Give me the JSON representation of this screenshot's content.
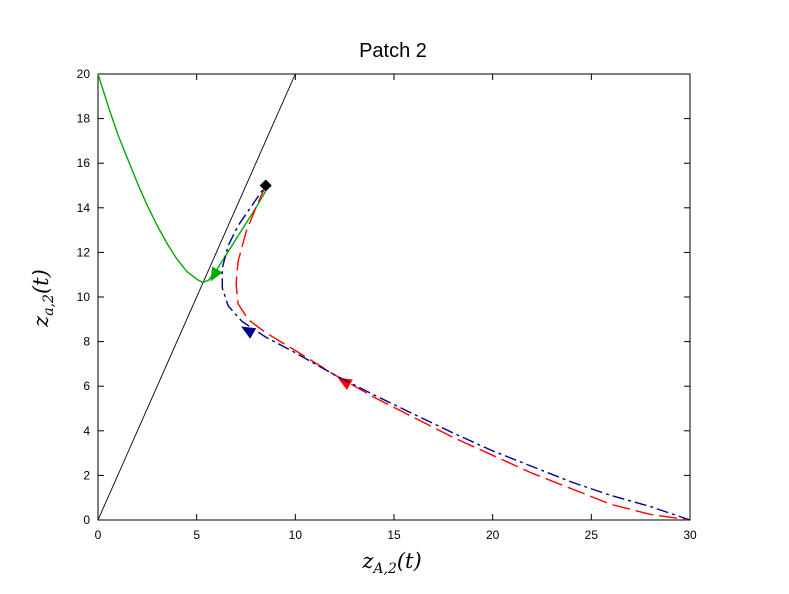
{
  "chart_data": {
    "type": "line",
    "title": "Patch 2",
    "xlabel": {
      "base": "z",
      "sub": "A,2",
      "suffix": "(t)"
    },
    "ylabel": {
      "base": "z",
      "sub": "a,2",
      "suffix": "(t)"
    },
    "xlim": [
      0,
      30
    ],
    "ylim": [
      0,
      20
    ],
    "x_ticks": [
      0,
      5,
      10,
      15,
      20,
      25,
      30
    ],
    "y_ticks": [
      0,
      2,
      4,
      6,
      8,
      10,
      12,
      14,
      16,
      18,
      20
    ],
    "grid": false,
    "series": [
      {
        "style": "solid-black",
        "color": "#000000",
        "points": [
          [
            0,
            0
          ],
          [
            10,
            20
          ]
        ]
      },
      {
        "style": "solid-green",
        "color": "#00aa00",
        "points": [
          [
            0,
            20
          ],
          [
            0.5,
            18.6
          ],
          [
            1.0,
            17.3
          ],
          [
            1.5,
            16.2
          ],
          [
            2.0,
            15.1
          ],
          [
            2.5,
            14.1
          ],
          [
            3.0,
            13.2
          ],
          [
            3.5,
            12.4
          ],
          [
            4.0,
            11.7
          ],
          [
            4.5,
            11.15
          ],
          [
            5.0,
            10.8
          ],
          [
            5.3,
            10.65
          ],
          [
            5.6,
            10.75
          ],
          [
            6.0,
            11.2
          ],
          [
            6.5,
            11.9
          ],
          [
            7.0,
            12.6
          ],
          [
            7.5,
            13.3
          ],
          [
            8.0,
            14.0
          ],
          [
            8.5,
            14.75
          ]
        ],
        "arrow_at": [
          5.9,
          11.0
        ],
        "arrow_dir": "down-left"
      },
      {
        "style": "dashed-red",
        "color": "#ff0000",
        "points": [
          [
            8.5,
            15.0
          ],
          [
            8.0,
            14.0
          ],
          [
            7.5,
            12.9
          ],
          [
            7.1,
            11.6
          ],
          [
            7.0,
            10.6
          ],
          [
            7.1,
            9.7
          ],
          [
            7.6,
            9.0
          ],
          [
            8.5,
            8.4
          ],
          [
            10.0,
            7.6
          ],
          [
            12.0,
            6.5
          ],
          [
            14.0,
            5.5
          ],
          [
            16.0,
            4.6
          ],
          [
            18.0,
            3.7
          ],
          [
            20.0,
            2.9
          ],
          [
            22.0,
            2.1
          ],
          [
            24.0,
            1.4
          ],
          [
            26.0,
            0.7
          ],
          [
            28.0,
            0.25
          ],
          [
            30.0,
            0.0
          ]
        ],
        "arrow_at": [
          12.5,
          6.2
        ],
        "arrow_dir": "up-left"
      },
      {
        "style": "dashdot-blue",
        "color": "#00008b",
        "points": [
          [
            30.0,
            0.0
          ],
          [
            28.0,
            0.6
          ],
          [
            26.0,
            1.1
          ],
          [
            24.0,
            1.7
          ],
          [
            22.0,
            2.4
          ],
          [
            20.0,
            3.1
          ],
          [
            18.0,
            3.9
          ],
          [
            16.0,
            4.75
          ],
          [
            14.0,
            5.6
          ],
          [
            12.0,
            6.5
          ],
          [
            10.0,
            7.5
          ],
          [
            8.5,
            8.2
          ],
          [
            7.3,
            8.9
          ],
          [
            6.6,
            9.6
          ],
          [
            6.3,
            10.4
          ],
          [
            6.3,
            11.3
          ],
          [
            6.6,
            12.3
          ],
          [
            7.1,
            13.2
          ],
          [
            7.8,
            14.1
          ],
          [
            8.5,
            15.0
          ]
        ],
        "arrow_at": [
          7.6,
          8.5
        ],
        "arrow_dir": "up-left"
      }
    ],
    "markers": [
      {
        "shape": "diamond",
        "color": "#000000",
        "x": 8.5,
        "y": 15.0
      }
    ]
  }
}
